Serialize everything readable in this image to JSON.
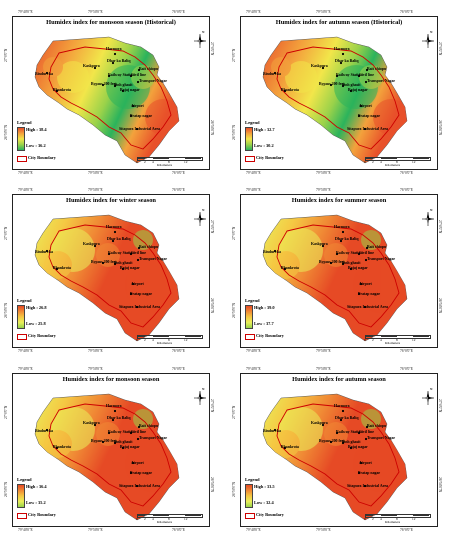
{
  "coords": {
    "top": [
      "79°40'0\"E",
      "79°50'0\"E",
      "76°0'0\"E"
    ],
    "left": [
      "27°0'0\"N",
      "26°50'0\"N"
    ],
    "right": [
      "27°0'0\"N",
      "26°50'0\"N"
    ]
  },
  "places": [
    "Harmora",
    "Dhar ka Baliq",
    "Kaskpura",
    "Bait chiopu",
    "Bindurvka",
    "Railway Station",
    "Civil line",
    "Transport Nagar",
    "Bypass 200 feet",
    "Sinh ghasit",
    "Bhankrota",
    "Bajaj nagar",
    "Airport",
    "Pratap nagar",
    "Sitapura Industrial Area"
  ],
  "legend": {
    "title": "Legend",
    "boundary": "City Boundary"
  },
  "scale": {
    "ticks": [
      "0",
      "2",
      "4",
      "8",
      "12"
    ],
    "unit": "Kilometers"
  },
  "north_label": "N",
  "panels": [
    {
      "title": "Humidex index for monsoon season (Historical)",
      "high": "High : 38.4",
      "low": "Low : 36.2",
      "ramp": "green"
    },
    {
      "title": "Humidex index for autumn season (Historical)",
      "high": "High : 32.7",
      "low": "Low : 30.2",
      "ramp": "green"
    },
    {
      "title": "Humidex index for winter season",
      "high": "High : 26.8",
      "low": "Low : 25.8",
      "ramp": "red"
    },
    {
      "title": "Humidex index for summer season",
      "high": "High : 39.0",
      "low": "Low : 37.7",
      "ramp": "red"
    },
    {
      "title": "Humidex index for monsoon season",
      "high": "High : 36.4",
      "low": "Low : 35.2",
      "ramp": "red"
    },
    {
      "title": "Humidex index for autumn season",
      "high": "High : 33.5",
      "low": "Low : 32.4",
      "ramp": "red"
    }
  ],
  "colors": {
    "boundary": "#cc0000",
    "green_ramp": [
      "#2bb35c",
      "#9bd24a",
      "#f2e64a",
      "#f3a23c",
      "#e8512a"
    ],
    "red_ramp": [
      "#e64a25",
      "#f08a35",
      "#f5c843",
      "#e9ef5a",
      "#96d24a"
    ]
  }
}
